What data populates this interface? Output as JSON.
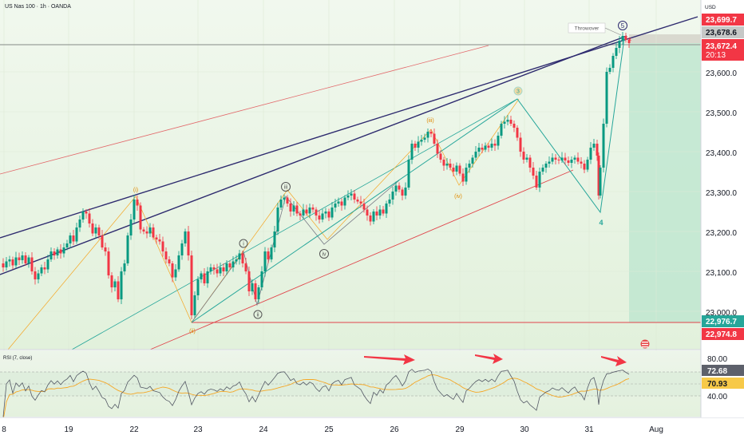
{
  "header": {
    "symbol_line": "US Nas 100 · 1h · OANDA"
  },
  "rsi_header": {
    "label": "RSI (7, close)"
  },
  "price_axis": {
    "currency": "USD",
    "ticks": [
      "23,600.0",
      "23,500.0",
      "23,400.0",
      "23,300.0",
      "23,200.0",
      "23,100.0",
      "23,000.0"
    ],
    "badges": {
      "upper_target": "23,699.7",
      "current_high": "23,678.6",
      "last_price": "23,672.4",
      "countdown": "20:13",
      "support_1": "22,976.7",
      "support_2": "22,974.8"
    }
  },
  "rsi_axis": {
    "ticks": [
      "80.00",
      "40.00"
    ],
    "badges": {
      "rsi_value": "72.68",
      "rsi_ma": "70.93"
    }
  },
  "time_axis": {
    "labels": [
      "8",
      "19",
      "22",
      "23",
      "24",
      "25",
      "26",
      "29",
      "30",
      "31",
      "Aug"
    ]
  },
  "wave_labels": {
    "i_small": "i",
    "ii_small": "ii",
    "iii_small": "iii",
    "iv_small": "iv",
    "i_left": "(i)",
    "ii_left": "(ii)",
    "iii_orange": "(iii)",
    "iv_orange": "(iv)",
    "wave3": "3",
    "wave4": "4",
    "wave5": "5"
  },
  "annotation": {
    "throwover": "Throwover"
  },
  "colors": {
    "up": "#089981",
    "down": "#f23645",
    "channel_dark": "#2d2a6e",
    "red_line": "#e0454b",
    "elliott_green": "#26a69a",
    "fib_orange": "#f5a623",
    "wave_gray": "#787b86",
    "rsi_line": "#7e57c2",
    "rsi_ma": "#f5a623"
  },
  "chart_data": {
    "type": "candlestick",
    "instrument": "US Nas 100",
    "interval": "1h",
    "y_axis": {
      "min": 22900,
      "max": 23760,
      "ticks": [
        23000,
        23100,
        23200,
        23300,
        23400,
        23500,
        23600
      ]
    },
    "x_axis": {
      "labels": [
        "8",
        "19",
        "22",
        "23",
        "24",
        "25",
        "26",
        "29",
        "30",
        "31",
        "Aug"
      ]
    },
    "key_levels": [
      23699.7,
      23678.6,
      23672.4,
      22976.7,
      22974.8
    ],
    "price_path": [
      [
        0,
        23120
      ],
      [
        4,
        23110
      ],
      [
        8,
        23125
      ],
      [
        12,
        23130
      ],
      [
        16,
        23115
      ],
      [
        20,
        23135
      ],
      [
        24,
        23128
      ],
      [
        28,
        23140
      ],
      [
        32,
        23120
      ],
      [
        36,
        23135
      ],
      [
        40,
        23100
      ],
      [
        44,
        23080
      ],
      [
        48,
        23095
      ],
      [
        52,
        23110
      ],
      [
        56,
        23105
      ],
      [
        60,
        23130
      ],
      [
        64,
        23150
      ],
      [
        68,
        23140
      ],
      [
        72,
        23155
      ],
      [
        76,
        23145
      ],
      [
        80,
        23160
      ],
      [
        84,
        23170
      ],
      [
        88,
        23190
      ],
      [
        92,
        23175
      ],
      [
        96,
        23210
      ],
      [
        100,
        23230
      ],
      [
        104,
        23250
      ],
      [
        108,
        23245
      ],
      [
        112,
        23220
      ],
      [
        116,
        23195
      ],
      [
        120,
        23210
      ],
      [
        124,
        23190
      ],
      [
        128,
        23160
      ],
      [
        132,
        23150
      ],
      [
        136,
        23090
      ],
      [
        140,
        23060
      ],
      [
        144,
        23075
      ],
      [
        148,
        23030
      ],
      [
        152,
        23100
      ],
      [
        156,
        23120
      ],
      [
        160,
        23190
      ],
      [
        164,
        23230
      ],
      [
        168,
        23280
      ],
      [
        172,
        23265
      ],
      [
        176,
        23205
      ],
      [
        180,
        23200
      ],
      [
        184,
        23195
      ],
      [
        188,
        23210
      ],
      [
        192,
        23185
      ],
      [
        196,
        23180
      ],
      [
        200,
        23175
      ],
      [
        204,
        23150
      ],
      [
        208,
        23130
      ],
      [
        212,
        23120
      ],
      [
        216,
        23085
      ],
      [
        220,
        23105
      ],
      [
        224,
        23140
      ],
      [
        228,
        23170
      ],
      [
        232,
        23200
      ],
      [
        236,
        23140
      ],
      [
        240,
        22990
      ],
      [
        244,
        23040
      ],
      [
        248,
        23080
      ],
      [
        252,
        23095
      ],
      [
        256,
        23070
      ],
      [
        260,
        23100
      ],
      [
        264,
        23110
      ],
      [
        268,
        23105
      ],
      [
        272,
        23095
      ],
      [
        276,
        23110
      ],
      [
        280,
        23100
      ],
      [
        284,
        23120
      ],
      [
        288,
        23110
      ],
      [
        292,
        23125
      ],
      [
        296,
        23130
      ],
      [
        300,
        23145
      ],
      [
        304,
        23120
      ],
      [
        308,
        23100
      ],
      [
        312,
        23050
      ],
      [
        316,
        23070
      ],
      [
        320,
        23030
      ],
      [
        324,
        23060
      ],
      [
        328,
        23100
      ],
      [
        332,
        23150
      ],
      [
        336,
        23130
      ],
      [
        340,
        23160
      ],
      [
        344,
        23200
      ],
      [
        348,
        23260
      ],
      [
        352,
        23280
      ],
      [
        356,
        23285
      ],
      [
        360,
        23270
      ],
      [
        364,
        23250
      ],
      [
        368,
        23265
      ],
      [
        372,
        23245
      ],
      [
        376,
        23240
      ],
      [
        380,
        23255
      ],
      [
        384,
        23245
      ],
      [
        388,
        23260
      ],
      [
        392,
        23255
      ],
      [
        396,
        23240
      ],
      [
        400,
        23230
      ],
      [
        404,
        23245
      ],
      [
        408,
        23250
      ],
      [
        412,
        23235
      ],
      [
        416,
        23260
      ],
      [
        420,
        23270
      ],
      [
        424,
        23275
      ],
      [
        428,
        23265
      ],
      [
        432,
        23285
      ],
      [
        436,
        23290
      ],
      [
        440,
        23295
      ],
      [
        444,
        23280
      ],
      [
        448,
        23275
      ],
      [
        452,
        23270
      ],
      [
        456,
        23255
      ],
      [
        460,
        23240
      ],
      [
        464,
        23225
      ],
      [
        468,
        23250
      ],
      [
        472,
        23240
      ],
      [
        476,
        23255
      ],
      [
        480,
        23245
      ],
      [
        484,
        23270
      ],
      [
        488,
        23280
      ],
      [
        492,
        23300
      ],
      [
        496,
        23315
      ],
      [
        500,
        23305
      ],
      [
        504,
        23290
      ],
      [
        508,
        23310
      ],
      [
        512,
        23380
      ],
      [
        516,
        23420
      ],
      [
        520,
        23410
      ],
      [
        524,
        23425
      ],
      [
        528,
        23430
      ],
      [
        532,
        23435
      ],
      [
        536,
        23450
      ],
      [
        540,
        23445
      ],
      [
        544,
        23420
      ],
      [
        548,
        23395
      ],
      [
        552,
        23380
      ],
      [
        556,
        23365
      ],
      [
        560,
        23370
      ],
      [
        564,
        23360
      ],
      [
        568,
        23350
      ],
      [
        572,
        23365
      ],
      [
        576,
        23345
      ],
      [
        580,
        23325
      ],
      [
        584,
        23360
      ],
      [
        588,
        23370
      ],
      [
        592,
        23385
      ],
      [
        596,
        23400
      ],
      [
        600,
        23410
      ],
      [
        604,
        23405
      ],
      [
        608,
        23415
      ],
      [
        612,
        23410
      ],
      [
        616,
        23420
      ],
      [
        620,
        23415
      ],
      [
        624,
        23440
      ],
      [
        628,
        23470
      ],
      [
        632,
        23475
      ],
      [
        636,
        23480
      ],
      [
        640,
        23470
      ],
      [
        644,
        23460
      ],
      [
        648,
        23435
      ],
      [
        652,
        23400
      ],
      [
        656,
        23380
      ],
      [
        660,
        23385
      ],
      [
        664,
        23360
      ],
      [
        668,
        23340
      ],
      [
        672,
        23310
      ],
      [
        676,
        23350
      ],
      [
        680,
        23360
      ],
      [
        684,
        23370
      ],
      [
        688,
        23375
      ],
      [
        692,
        23385
      ],
      [
        696,
        23380
      ],
      [
        700,
        23378
      ],
      [
        704,
        23385
      ],
      [
        708,
        23378
      ],
      [
        712,
        23372
      ],
      [
        716,
        23380
      ],
      [
        720,
        23385
      ],
      [
        724,
        23375
      ],
      [
        728,
        23370
      ],
      [
        732,
        23355
      ],
      [
        736,
        23380
      ],
      [
        740,
        23410
      ],
      [
        744,
        23420
      ],
      [
        748,
        23390
      ],
      [
        750,
        23290
      ],
      [
        752,
        23360
      ],
      [
        756,
        23470
      ],
      [
        760,
        23600
      ],
      [
        764,
        23610
      ],
      [
        768,
        23640
      ],
      [
        772,
        23660
      ],
      [
        776,
        23678
      ],
      [
        780,
        23690
      ],
      [
        784,
        23680
      ],
      [
        788,
        23672
      ]
    ],
    "rsi": {
      "name": "RSI (7, close)",
      "levels": [
        40,
        60,
        80
      ],
      "last_values": {
        "rsi": 72.68,
        "ma": 70.93
      }
    }
  }
}
